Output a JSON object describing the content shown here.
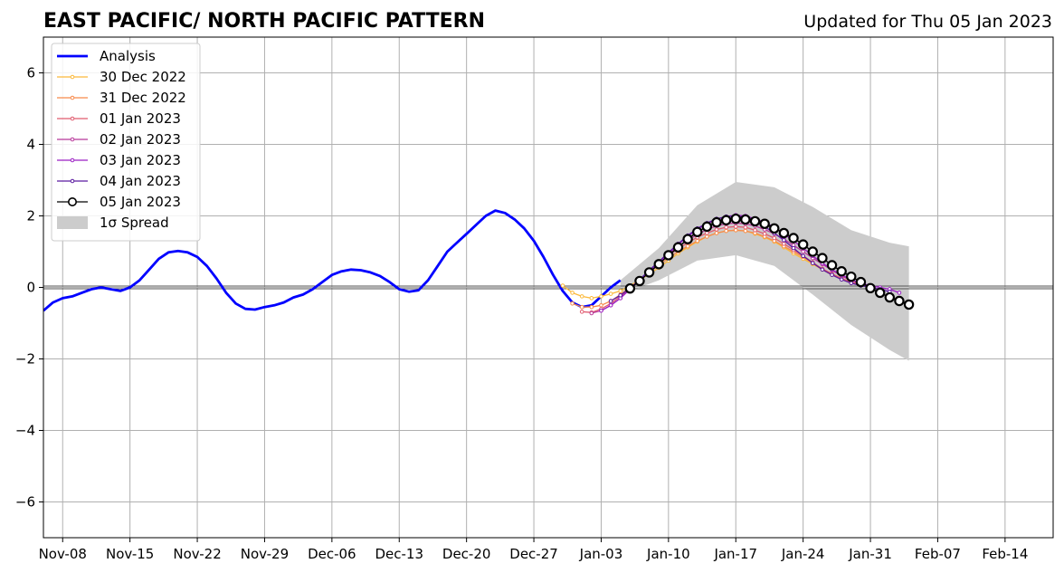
{
  "chart_data": {
    "type": "line",
    "title": "EAST PACIFIC/ NORTH PACIFIC PATTERN",
    "subtitle": "Updated for Thu 05 Jan 2023",
    "xlabel": "",
    "ylabel": "",
    "x_range": [
      "2022-11-06",
      "2023-02-19"
    ],
    "ylim": [
      -7,
      7
    ],
    "y_ticks": [
      -6,
      -4,
      -2,
      0,
      2,
      4,
      6
    ],
    "y_tick_labels": [
      "−6",
      "−4",
      "−2",
      "0",
      "2",
      "4",
      "6"
    ],
    "x_ticks": [
      "2022-11-08",
      "2022-11-15",
      "2022-11-22",
      "2022-11-29",
      "2022-12-06",
      "2022-12-13",
      "2022-12-20",
      "2022-12-27",
      "2023-01-03",
      "2023-01-10",
      "2023-01-17",
      "2023-01-24",
      "2023-01-31",
      "2023-02-07",
      "2023-02-14"
    ],
    "x_tick_labels": [
      "Nov-08",
      "Nov-15",
      "Nov-22",
      "Nov-29",
      "Dec-06",
      "Dec-13",
      "Dec-20",
      "Dec-27",
      "Jan-03",
      "Jan-10",
      "Jan-17",
      "Jan-24",
      "Jan-31",
      "Feb-07",
      "Feb-14"
    ],
    "grid": true,
    "zero_line": true,
    "legend_position": "upper-left",
    "spread": {
      "name": "1σ Spread",
      "color": "#cccccc",
      "x": [
        "2023-01-05",
        "2023-01-09",
        "2023-01-13",
        "2023-01-17",
        "2023-01-21",
        "2023-01-25",
        "2023-01-29",
        "2023-02-02",
        "2023-02-04"
      ],
      "upper": [
        0.2,
        1.1,
        2.3,
        2.95,
        2.8,
        2.25,
        1.6,
        1.25,
        1.15
      ],
      "lower": [
        -0.2,
        0.2,
        0.75,
        0.9,
        0.6,
        -0.2,
        -1.05,
        -1.75,
        -2.05
      ]
    },
    "series": [
      {
        "name": "Analysis",
        "color": "#0000ff",
        "marker": "none",
        "x": [
          "2022-11-06",
          "2022-11-07",
          "2022-11-08",
          "2022-11-09",
          "2022-11-10",
          "2022-11-11",
          "2022-11-12",
          "2022-11-13",
          "2022-11-14",
          "2022-11-15",
          "2022-11-16",
          "2022-11-17",
          "2022-11-18",
          "2022-11-19",
          "2022-11-20",
          "2022-11-21",
          "2022-11-22",
          "2022-11-23",
          "2022-11-24",
          "2022-11-25",
          "2022-11-26",
          "2022-11-27",
          "2022-11-28",
          "2022-11-29",
          "2022-11-30",
          "2022-12-01",
          "2022-12-02",
          "2022-12-03",
          "2022-12-04",
          "2022-12-05",
          "2022-12-06",
          "2022-12-07",
          "2022-12-08",
          "2022-12-09",
          "2022-12-10",
          "2022-12-11",
          "2022-12-12",
          "2022-12-13",
          "2022-12-14",
          "2022-12-15",
          "2022-12-16",
          "2022-12-17",
          "2022-12-18",
          "2022-12-19",
          "2022-12-20",
          "2022-12-21",
          "2022-12-22",
          "2022-12-23",
          "2022-12-24",
          "2022-12-25",
          "2022-12-26",
          "2022-12-27",
          "2022-12-28",
          "2022-12-29",
          "2022-12-30",
          "2022-12-31",
          "2023-01-01",
          "2023-01-02",
          "2023-01-03",
          "2023-01-04",
          "2023-01-05"
        ],
        "values": [
          -0.65,
          -0.42,
          -0.3,
          -0.25,
          -0.15,
          -0.05,
          0.0,
          -0.05,
          -0.1,
          0.0,
          0.2,
          0.5,
          0.8,
          0.98,
          1.02,
          0.98,
          0.85,
          0.6,
          0.25,
          -0.15,
          -0.45,
          -0.6,
          -0.62,
          -0.55,
          -0.5,
          -0.42,
          -0.28,
          -0.2,
          -0.05,
          0.15,
          0.35,
          0.45,
          0.5,
          0.48,
          0.42,
          0.32,
          0.15,
          -0.05,
          -0.12,
          -0.08,
          0.2,
          0.6,
          1.0,
          1.25,
          1.5,
          1.75,
          2.0,
          2.15,
          2.08,
          1.9,
          1.65,
          1.3,
          0.85,
          0.35,
          -0.1,
          -0.42,
          -0.55,
          -0.5,
          -0.25,
          0.0,
          0.2
        ]
      },
      {
        "name": "30 Dec 2022",
        "color": "#fcb93a",
        "marker": "small-dot",
        "x": [
          "2022-12-30",
          "2022-12-31",
          "2023-01-01",
          "2023-01-02",
          "2023-01-03",
          "2023-01-04",
          "2023-01-05",
          "2023-01-06",
          "2023-01-07",
          "2023-01-08",
          "2023-01-09",
          "2023-01-10",
          "2023-01-11",
          "2023-01-12",
          "2023-01-13",
          "2023-01-14",
          "2023-01-15",
          "2023-01-16",
          "2023-01-17",
          "2023-01-18",
          "2023-01-19",
          "2023-01-20",
          "2023-01-21",
          "2023-01-22",
          "2023-01-23",
          "2023-01-24",
          "2023-01-25",
          "2023-01-26",
          "2023-01-27",
          "2023-01-28"
        ],
        "values": [
          0.05,
          -0.15,
          -0.25,
          -0.3,
          -0.25,
          -0.18,
          -0.1,
          0.05,
          0.2,
          0.38,
          0.55,
          0.75,
          0.95,
          1.12,
          1.28,
          1.42,
          1.52,
          1.58,
          1.6,
          1.58,
          1.5,
          1.4,
          1.28,
          1.12,
          0.95,
          0.8,
          0.65,
          0.5,
          0.35,
          0.25
        ]
      },
      {
        "name": "31 Dec 2022",
        "color": "#f78a4b",
        "marker": "small-dot",
        "x": [
          "2022-12-31",
          "2023-01-01",
          "2023-01-02",
          "2023-01-03",
          "2023-01-04",
          "2023-01-05",
          "2023-01-06",
          "2023-01-07",
          "2023-01-08",
          "2023-01-09",
          "2023-01-10",
          "2023-01-11",
          "2023-01-12",
          "2023-01-13",
          "2023-01-14",
          "2023-01-15",
          "2023-01-16",
          "2023-01-17",
          "2023-01-18",
          "2023-01-19",
          "2023-01-20",
          "2023-01-21",
          "2023-01-22",
          "2023-01-23",
          "2023-01-24",
          "2023-01-25",
          "2023-01-26",
          "2023-01-27",
          "2023-01-28",
          "2023-01-29"
        ],
        "values": [
          -0.45,
          -0.55,
          -0.55,
          -0.5,
          -0.38,
          -0.2,
          0.0,
          0.2,
          0.42,
          0.62,
          0.82,
          1.0,
          1.15,
          1.3,
          1.42,
          1.52,
          1.58,
          1.6,
          1.58,
          1.52,
          1.42,
          1.3,
          1.15,
          1.0,
          0.85,
          0.68,
          0.52,
          0.38,
          0.25,
          0.12
        ]
      },
      {
        "name": "01 Jan 2023",
        "color": "#e05a6e",
        "marker": "small-dot",
        "x": [
          "2023-01-01",
          "2023-01-02",
          "2023-01-03",
          "2023-01-04",
          "2023-01-05",
          "2023-01-06",
          "2023-01-07",
          "2023-01-08",
          "2023-01-09",
          "2023-01-10",
          "2023-01-11",
          "2023-01-12",
          "2023-01-13",
          "2023-01-14",
          "2023-01-15",
          "2023-01-16",
          "2023-01-17",
          "2023-01-18",
          "2023-01-19",
          "2023-01-20",
          "2023-01-21",
          "2023-01-22",
          "2023-01-23",
          "2023-01-24",
          "2023-01-25",
          "2023-01-26",
          "2023-01-27",
          "2023-01-28",
          "2023-01-29",
          "2023-01-30"
        ],
        "values": [
          -0.68,
          -0.7,
          -0.6,
          -0.45,
          -0.25,
          -0.05,
          0.2,
          0.45,
          0.68,
          0.9,
          1.08,
          1.25,
          1.4,
          1.52,
          1.62,
          1.68,
          1.7,
          1.68,
          1.6,
          1.5,
          1.38,
          1.22,
          1.05,
          0.88,
          0.7,
          0.52,
          0.38,
          0.25,
          0.15,
          0.08
        ]
      },
      {
        "name": "02 Jan 2023",
        "color": "#b8389a",
        "marker": "small-dot",
        "x": [
          "2023-01-02",
          "2023-01-03",
          "2023-01-04",
          "2023-01-05",
          "2023-01-06",
          "2023-01-07",
          "2023-01-08",
          "2023-01-09",
          "2023-01-10",
          "2023-01-11",
          "2023-01-12",
          "2023-01-13",
          "2023-01-14",
          "2023-01-15",
          "2023-01-16",
          "2023-01-17",
          "2023-01-18",
          "2023-01-19",
          "2023-01-20",
          "2023-01-21",
          "2023-01-22",
          "2023-01-23",
          "2023-01-24",
          "2023-01-25",
          "2023-01-26",
          "2023-01-27",
          "2023-01-28",
          "2023-01-29",
          "2023-01-30",
          "2023-01-31"
        ],
        "values": [
          -0.72,
          -0.65,
          -0.5,
          -0.3,
          -0.05,
          0.2,
          0.45,
          0.7,
          0.95,
          1.15,
          1.32,
          1.48,
          1.62,
          1.72,
          1.78,
          1.8,
          1.78,
          1.72,
          1.62,
          1.5,
          1.35,
          1.18,
          1.0,
          0.82,
          0.65,
          0.48,
          0.32,
          0.2,
          0.1,
          0.02
        ]
      },
      {
        "name": "03 Jan 2023",
        "color": "#9b1fc4",
        "marker": "small-dot",
        "x": [
          "2023-01-03",
          "2023-01-04",
          "2023-01-05",
          "2023-01-06",
          "2023-01-07",
          "2023-01-08",
          "2023-01-09",
          "2023-01-10",
          "2023-01-11",
          "2023-01-12",
          "2023-01-13",
          "2023-01-14",
          "2023-01-15",
          "2023-01-16",
          "2023-01-17",
          "2023-01-18",
          "2023-01-19",
          "2023-01-20",
          "2023-01-21",
          "2023-01-22",
          "2023-01-23",
          "2023-01-24",
          "2023-01-25",
          "2023-01-26",
          "2023-01-27",
          "2023-01-28",
          "2023-01-29",
          "2023-01-30",
          "2023-01-31",
          "2023-02-01",
          "2023-02-02",
          "2023-02-03"
        ],
        "values": [
          -0.65,
          -0.5,
          -0.3,
          -0.05,
          0.2,
          0.45,
          0.7,
          0.95,
          1.2,
          1.42,
          1.62,
          1.78,
          1.9,
          1.98,
          2.02,
          2.0,
          1.92,
          1.82,
          1.68,
          1.5,
          1.3,
          1.1,
          0.88,
          0.68,
          0.5,
          0.35,
          0.22,
          0.12,
          0.05,
          0.0,
          -0.05,
          -0.15
        ]
      },
      {
        "name": "04 Jan 2023",
        "color": "#5a1aa0",
        "marker": "small-dot",
        "x": [
          "2023-01-04",
          "2023-01-05",
          "2023-01-06",
          "2023-01-07",
          "2023-01-08",
          "2023-01-09",
          "2023-01-10",
          "2023-01-11",
          "2023-01-12",
          "2023-01-13",
          "2023-01-14",
          "2023-01-15",
          "2023-01-16",
          "2023-01-17",
          "2023-01-18",
          "2023-01-19",
          "2023-01-20",
          "2023-01-21",
          "2023-01-22",
          "2023-01-23",
          "2023-01-24",
          "2023-01-25",
          "2023-01-26",
          "2023-01-27",
          "2023-01-28",
          "2023-01-29",
          "2023-01-30",
          "2023-01-31",
          "2023-02-01",
          "2023-02-02"
        ],
        "values": [
          -0.38,
          -0.22,
          -0.02,
          0.22,
          0.48,
          0.72,
          0.98,
          1.22,
          1.45,
          1.65,
          1.8,
          1.92,
          1.98,
          2.0,
          1.95,
          1.85,
          1.7,
          1.52,
          1.32,
          1.1,
          0.88,
          0.68,
          0.5,
          0.35,
          0.22,
          0.12,
          0.05,
          0.0,
          -0.05,
          -0.12
        ]
      },
      {
        "name": "05 Jan 2023",
        "color": "#000000",
        "marker": "open-circle",
        "x": [
          "2023-01-06",
          "2023-01-07",
          "2023-01-08",
          "2023-01-09",
          "2023-01-10",
          "2023-01-11",
          "2023-01-12",
          "2023-01-13",
          "2023-01-14",
          "2023-01-15",
          "2023-01-16",
          "2023-01-17",
          "2023-01-18",
          "2023-01-19",
          "2023-01-20",
          "2023-01-21",
          "2023-01-22",
          "2023-01-23",
          "2023-01-24",
          "2023-01-25",
          "2023-01-26",
          "2023-01-27",
          "2023-01-28",
          "2023-01-29",
          "2023-01-30",
          "2023-01-31",
          "2023-02-01",
          "2023-02-02",
          "2023-02-03",
          "2023-02-04"
        ],
        "values": [
          -0.03,
          0.18,
          0.42,
          0.65,
          0.9,
          1.12,
          1.35,
          1.55,
          1.7,
          1.82,
          1.88,
          1.92,
          1.9,
          1.85,
          1.78,
          1.65,
          1.52,
          1.38,
          1.2,
          1.0,
          0.82,
          0.62,
          0.45,
          0.3,
          0.15,
          -0.02,
          -0.15,
          -0.28,
          -0.38,
          -0.48
        ]
      }
    ]
  }
}
